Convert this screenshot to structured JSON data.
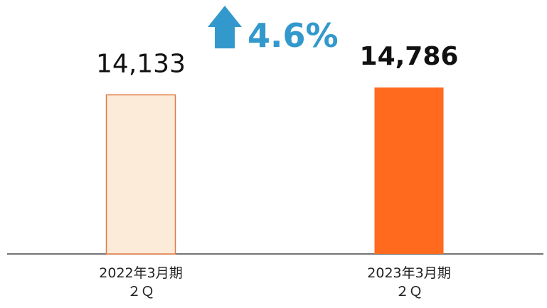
{
  "chart_data": {
    "type": "bar",
    "categories": [
      "2022年3月期\n２Ｑ",
      "2023年3月期\n２Ｑ"
    ],
    "values": [
      14133,
      14786
    ],
    "value_labels": [
      "14,133",
      "14,786"
    ],
    "colors": [
      "#fdebd9",
      "#ff6a1f"
    ],
    "annotation": "4.6%"
  }
}
